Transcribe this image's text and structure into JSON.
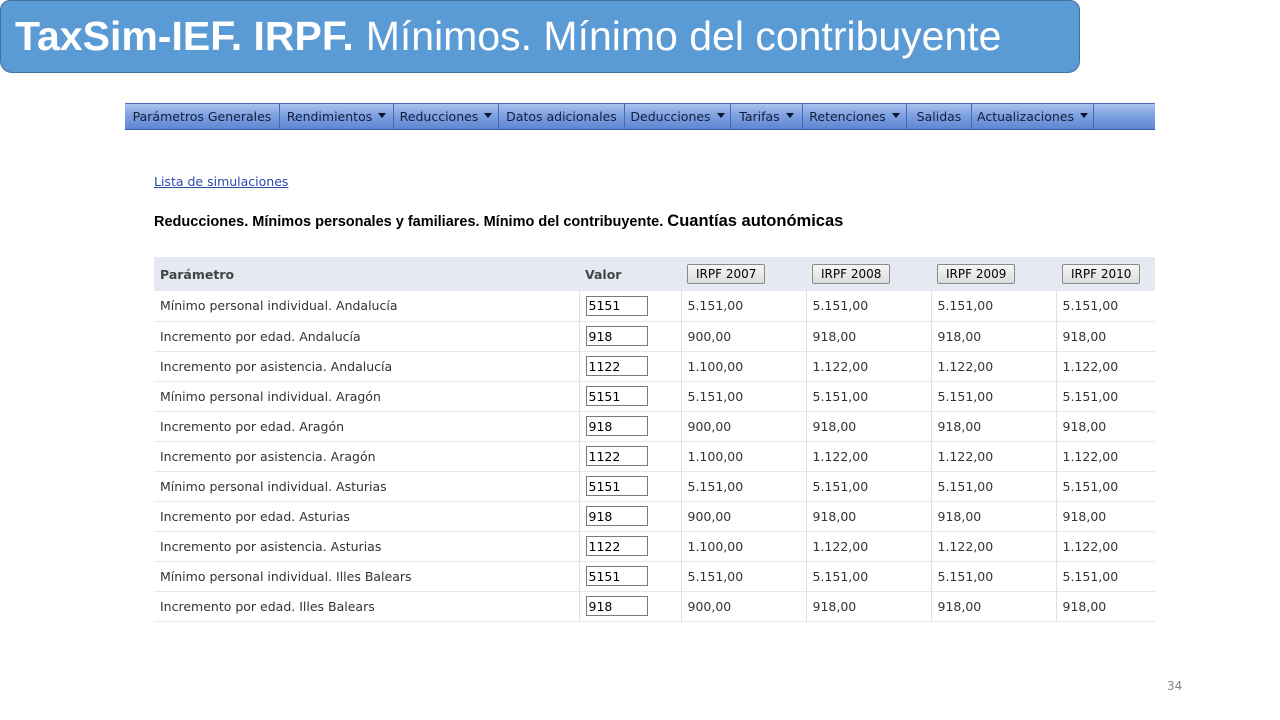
{
  "title": {
    "bold": "TaxSim-IEF. IRPF.",
    "normal": "Mínimos. Mínimo del contribuyente"
  },
  "menu": [
    {
      "label": "Parámetros Generales",
      "dropdown": false
    },
    {
      "label": "Rendimientos",
      "dropdown": true
    },
    {
      "label": "Reducciones",
      "dropdown": true
    },
    {
      "label": "Datos adicionales",
      "dropdown": false
    },
    {
      "label": "Deducciones",
      "dropdown": true
    },
    {
      "label": "Tarifas",
      "dropdown": true
    },
    {
      "label": "Retenciones",
      "dropdown": true
    },
    {
      "label": "Salidas",
      "dropdown": false
    },
    {
      "label": "Actualizaciones",
      "dropdown": true
    }
  ],
  "link": "Lista de simulaciones",
  "heading": {
    "main": "Reducciones. Mínimos personales y familiares. Mínimo del contribuyente.",
    "big": "Cuantías autonómicas"
  },
  "table": {
    "col_param": "Parámetro",
    "col_valor": "Valor",
    "years": [
      "IRPF 2007",
      "IRPF 2008",
      "IRPF 2009",
      "IRPF 2010"
    ],
    "rows": [
      {
        "param": "Mínimo personal individual. Andalucía",
        "value": "5151",
        "y2007": "5.151,00",
        "y2008": "5.151,00",
        "y2009": "5.151,00",
        "y2010": "5.151,00"
      },
      {
        "param": "Incremento por edad. Andalucía",
        "value": "918",
        "y2007": "900,00",
        "y2008": "918,00",
        "y2009": "918,00",
        "y2010": "918,00"
      },
      {
        "param": "Incremento por asistencia. Andalucía",
        "value": "1122",
        "y2007": "1.100,00",
        "y2008": "1.122,00",
        "y2009": "1.122,00",
        "y2010": "1.122,00"
      },
      {
        "param": "Mínimo personal individual. Aragón",
        "value": "5151",
        "y2007": "5.151,00",
        "y2008": "5.151,00",
        "y2009": "5.151,00",
        "y2010": "5.151,00"
      },
      {
        "param": "Incremento por edad. Aragón",
        "value": "918",
        "y2007": "900,00",
        "y2008": "918,00",
        "y2009": "918,00",
        "y2010": "918,00"
      },
      {
        "param": "Incremento por asistencia. Aragón",
        "value": "1122",
        "y2007": "1.100,00",
        "y2008": "1.122,00",
        "y2009": "1.122,00",
        "y2010": "1.122,00"
      },
      {
        "param": "Mínimo personal individual. Asturias",
        "value": "5151",
        "y2007": "5.151,00",
        "y2008": "5.151,00",
        "y2009": "5.151,00",
        "y2010": "5.151,00"
      },
      {
        "param": "Incremento por edad. Asturias",
        "value": "918",
        "y2007": "900,00",
        "y2008": "918,00",
        "y2009": "918,00",
        "y2010": "918,00"
      },
      {
        "param": "Incremento por asistencia. Asturias",
        "value": "1122",
        "y2007": "1.100,00",
        "y2008": "1.122,00",
        "y2009": "1.122,00",
        "y2010": "1.122,00"
      },
      {
        "param": "Mínimo personal individual. Illes Balears",
        "value": "5151",
        "y2007": "5.151,00",
        "y2008": "5.151,00",
        "y2009": "5.151,00",
        "y2010": "5.151,00"
      },
      {
        "param": "Incremento por edad. Illes Balears",
        "value": "918",
        "y2007": "900,00",
        "y2008": "918,00",
        "y2009": "918,00",
        "y2010": "918,00"
      }
    ]
  },
  "page_number": "34"
}
